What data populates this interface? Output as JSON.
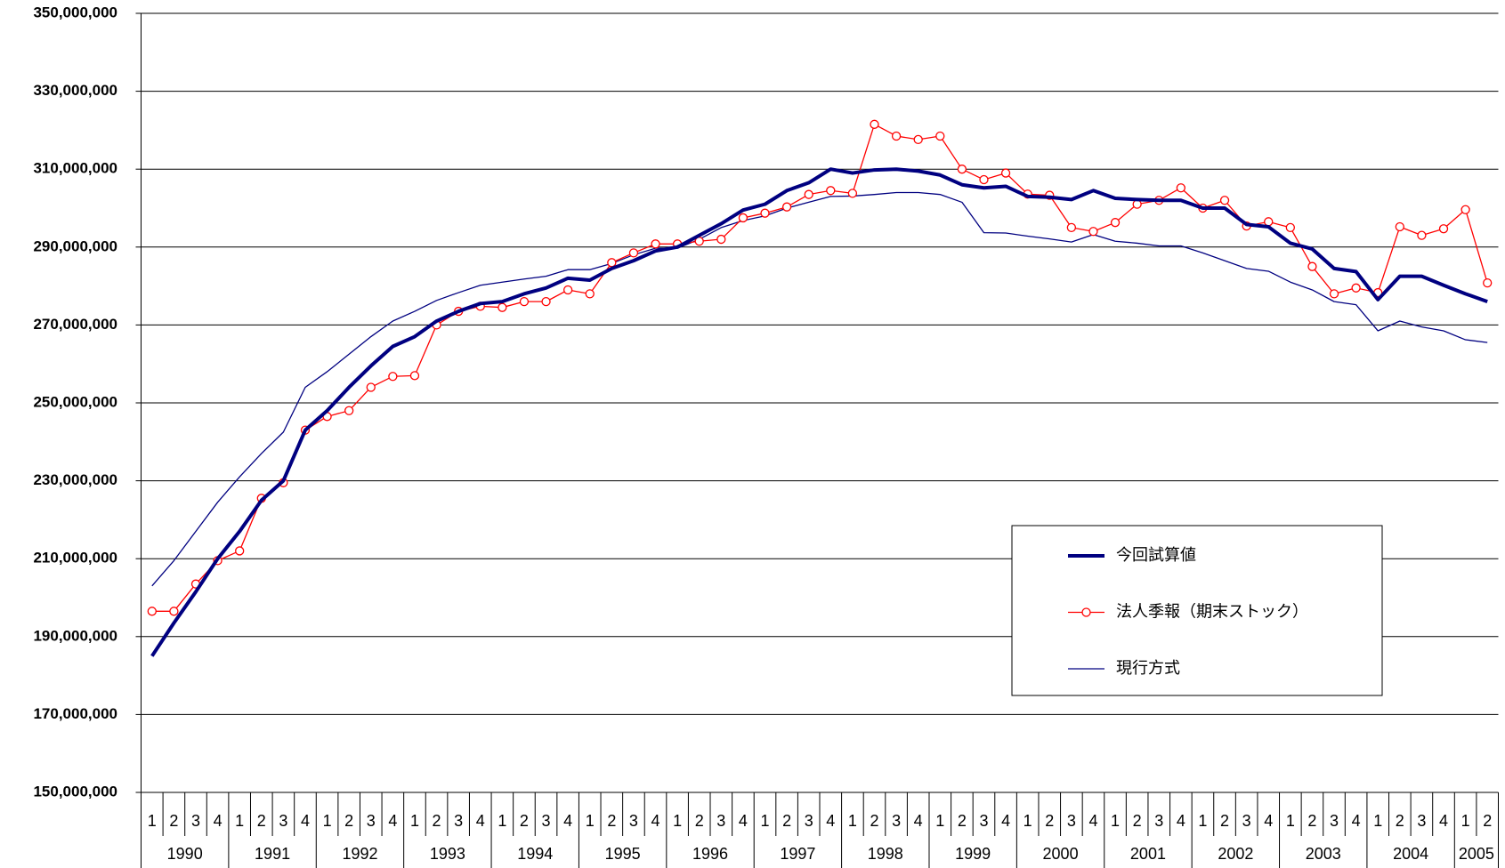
{
  "chart_data": {
    "type": "line",
    "categories": [
      "1",
      "2",
      "3",
      "4",
      "1",
      "2",
      "3",
      "4",
      "1",
      "2",
      "3",
      "4",
      "1",
      "2",
      "3",
      "4",
      "1",
      "2",
      "3",
      "4",
      "1",
      "2",
      "3",
      "4",
      "1",
      "2",
      "3",
      "4",
      "1",
      "2",
      "3",
      "4",
      "1",
      "2",
      "3",
      "4",
      "1",
      "2",
      "3",
      "4",
      "1",
      "2",
      "3",
      "4",
      "1",
      "2",
      "3",
      "4",
      "1",
      "2",
      "3",
      "4",
      "1",
      "2",
      "3",
      "4",
      "1",
      "2",
      "3",
      "4",
      "1",
      "2"
    ],
    "years": [
      "1990",
      "1991",
      "1992",
      "1993",
      "1994",
      "1995",
      "1996",
      "1997",
      "1998",
      "1999",
      "2000",
      "2001",
      "2002",
      "2003",
      "2004",
      "2005"
    ],
    "ylim": [
      150000000,
      350000000
    ],
    "yticks": [
      {
        "value": 150000000,
        "label": "150,000,000"
      },
      {
        "value": 170000000,
        "label": "170,000,000"
      },
      {
        "value": 190000000,
        "label": "190,000,000"
      },
      {
        "value": 210000000,
        "label": "210,000,000"
      },
      {
        "value": 230000000,
        "label": "230,000,000"
      },
      {
        "value": 250000000,
        "label": "250,000,000"
      },
      {
        "value": 270000000,
        "label": "270,000,000"
      },
      {
        "value": 290000000,
        "label": "290,000,000"
      },
      {
        "value": 310000000,
        "label": "310,000,000"
      },
      {
        "value": 330000000,
        "label": "330,000,000"
      },
      {
        "value": 350000000,
        "label": "350,000,000"
      }
    ],
    "grid": true,
    "series": [
      {
        "name": "今回試算値",
        "color": "#000080",
        "line_width": 4,
        "values": [
          185000000,
          193500000,
          201500000,
          210000000,
          217000000,
          225000000,
          230000000,
          243000000,
          248000000,
          254000000,
          259500000,
          264500000,
          267000000,
          271000000,
          273500000,
          275500000,
          276000000,
          278000000,
          279500000,
          282000000,
          281500000,
          284500000,
          286500000,
          289000000,
          290000000,
          293000000,
          296000000,
          299500000,
          301000000,
          304500000,
          306500000,
          310000000,
          309000000,
          309800000,
          310000000,
          309500000,
          308500000,
          306000000,
          305200000,
          305600000,
          303000000,
          302800000,
          302200000,
          304500000,
          302500000,
          302200000,
          302000000,
          302000000,
          300000000,
          300000000,
          295800000,
          295200000,
          291000000,
          289500000,
          284500000,
          283700000,
          276500000,
          282500000,
          282500000,
          280200000,
          278000000,
          276000000
        ]
      },
      {
        "name": "法人季報（期末ストック）",
        "color": "#ff0000",
        "line_width": 1.3,
        "marker": "circle",
        "values": [
          196500000,
          196500000,
          203500000,
          209500000,
          212000000,
          225500000,
          229500000,
          243000000,
          246500000,
          248000000,
          254000000,
          256800000,
          257000000,
          270000000,
          273500000,
          274800000,
          274500000,
          276000000,
          276000000,
          279000000,
          278000000,
          286000000,
          288500000,
          290800000,
          290800000,
          291500000,
          292000000,
          297500000,
          298700000,
          300300000,
          303500000,
          304500000,
          303800000,
          321500000,
          318500000,
          317600000,
          318500000,
          310000000,
          307300000,
          309000000,
          303600000,
          303300000,
          295000000,
          294000000,
          296300000,
          301000000,
          302000000,
          305200000,
          300000000,
          302000000,
          295400000,
          296500000,
          295000000,
          285000000,
          278000000,
          279500000,
          278300000,
          295200000,
          293000000,
          294700000,
          299600000,
          280800000
        ]
      },
      {
        "name": "現行方式",
        "color": "#000080",
        "line_width": 1.3,
        "values": [
          203000000,
          209500000,
          217000000,
          224500000,
          231000000,
          237000000,
          242500000,
          254000000,
          258000000,
          262500000,
          267000000,
          271000000,
          273500000,
          276300000,
          278300000,
          280200000,
          281000000,
          281800000,
          282500000,
          284200000,
          284200000,
          285800000,
          288000000,
          289700000,
          289700000,
          292000000,
          295000000,
          296800000,
          298000000,
          300000000,
          301500000,
          303000000,
          303100000,
          303500000,
          304000000,
          304000000,
          303500000,
          301500000,
          293700000,
          293600000,
          292800000,
          292100000,
          291300000,
          293200000,
          291500000,
          291000000,
          290300000,
          290300000,
          288500000,
          286500000,
          284500000,
          283800000,
          281000000,
          279000000,
          276000000,
          275200000,
          268500000,
          271000000,
          269500000,
          268500000,
          266200000,
          265500000
        ]
      }
    ]
  }
}
